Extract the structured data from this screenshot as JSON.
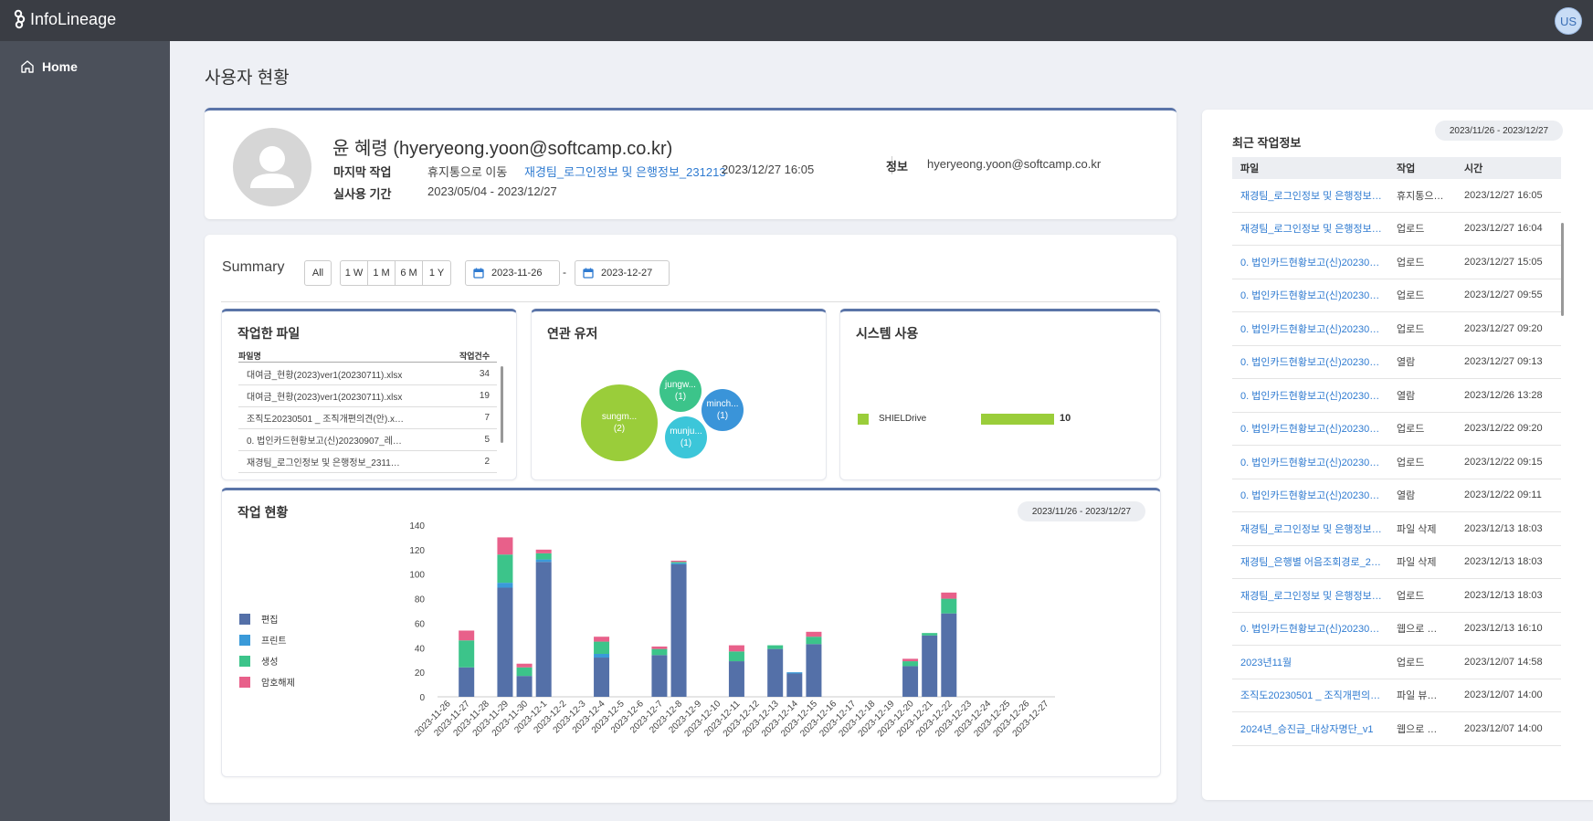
{
  "app": {
    "name": "InfoLineage",
    "user_initials": "US"
  },
  "sidebar": {
    "items": [
      {
        "label": "Home",
        "icon": "home-icon"
      }
    ]
  },
  "page": {
    "title": "사용자 현황"
  },
  "profile": {
    "name": "윤 혜령 (hyeryeong.yoon@softcamp.co.kr)",
    "last_work_label": "마지막 작업",
    "last_work_action": "휴지통으로 이동",
    "last_work_file": "재경팀_로그인정보 및 은행정보_231213",
    "last_work_time": "2023/12/27 16:05",
    "info_label": "정보",
    "info_value": "hyeryeong.yoon@softcamp.co.kr",
    "period_label": "실사용 기간",
    "period_value": "2023/05/04 - 2023/12/27"
  },
  "summary": {
    "title": "Summary",
    "all_label": "All",
    "ranges": [
      "1 W",
      "1 M",
      "6 M",
      "1 Y"
    ],
    "date_from": "2023-11-26",
    "date_to": "2023-12-27",
    "separator": "-"
  },
  "files_card": {
    "title": "작업한 파일",
    "col_name": "파일명",
    "col_count": "작업건수",
    "rows": [
      {
        "name": "대여금_현황(2023)ver1(20230711).xlsx",
        "count": "34"
      },
      {
        "name": "대여금_현황(2023)ver1(20230711).xlsx",
        "count": "19"
      },
      {
        "name": "조직도20230501 _ 조직개편의견(안).x…",
        "count": "7"
      },
      {
        "name": "0. 법인카드현황보고(신)20230907_레…",
        "count": "5"
      },
      {
        "name": "재경팀_로그인정보 및 은행정보_2311…",
        "count": "2"
      }
    ]
  },
  "users_card": {
    "title": "연관 유저",
    "bubbles": [
      {
        "name": "sungm...",
        "count": "(2)",
        "value": 2,
        "color": "#9acd3a"
      },
      {
        "name": "jungw...",
        "count": "(1)",
        "value": 1,
        "color": "#3cc48a"
      },
      {
        "name": "minch...",
        "count": "(1)",
        "value": 1,
        "color": "#3a94d9"
      },
      {
        "name": "munju...",
        "count": "(1)",
        "value": 1,
        "color": "#3cc6d9"
      }
    ]
  },
  "system_card": {
    "title": "시스템 사용",
    "items": [
      {
        "label": "SHIELDrive",
        "value": "10",
        "color": "#9acd3a"
      }
    ]
  },
  "work_card": {
    "title": "작업 현황",
    "range": "2023/11/26 - 2023/12/27"
  },
  "chart_data": {
    "type": "bar",
    "stacked": true,
    "categories": [
      "2023-11-26",
      "2023-11-27",
      "2023-11-28",
      "2023-11-29",
      "2023-11-30",
      "2023-12-1",
      "2023-12-2",
      "2023-12-3",
      "2023-12-4",
      "2023-12-5",
      "2023-12-6",
      "2023-12-7",
      "2023-12-8",
      "2023-12-9",
      "2023-12-10",
      "2023-12-11",
      "2023-12-12",
      "2023-12-13",
      "2023-12-14",
      "2023-12-15",
      "2023-12-16",
      "2023-12-17",
      "2023-12-18",
      "2023-12-19",
      "2023-12-20",
      "2023-12-21",
      "2023-12-22",
      "2023-12-23",
      "2023-12-24",
      "2023-12-25",
      "2023-12-26",
      "2023-12-27"
    ],
    "series": [
      {
        "name": "편집",
        "color": "#5470a8",
        "values": [
          0,
          24,
          0,
          89,
          17,
          110,
          0,
          0,
          32,
          0,
          0,
          34,
          108,
          0,
          0,
          29,
          0,
          39,
          19,
          43,
          0,
          0,
          0,
          0,
          25,
          50,
          68,
          0,
          0,
          0,
          0,
          0
        ]
      },
      {
        "name": "프린트",
        "color": "#3a9ad9",
        "values": [
          0,
          0,
          0,
          4,
          0,
          2,
          0,
          0,
          3,
          0,
          0,
          0,
          1,
          0,
          0,
          0,
          0,
          0,
          1,
          0,
          0,
          0,
          0,
          0,
          0,
          0,
          0,
          0,
          0,
          0,
          0,
          0
        ]
      },
      {
        "name": "생성",
        "color": "#3cc48a",
        "values": [
          0,
          22,
          0,
          23,
          7,
          5,
          0,
          0,
          10,
          0,
          0,
          5,
          1,
          0,
          0,
          8,
          0,
          3,
          0,
          6,
          0,
          0,
          0,
          0,
          4,
          2,
          12,
          0,
          0,
          0,
          0,
          0
        ]
      },
      {
        "name": "암호해제",
        "color": "#e8608a",
        "values": [
          0,
          8,
          0,
          14,
          3,
          3,
          0,
          0,
          4,
          0,
          0,
          2,
          1,
          0,
          0,
          5,
          0,
          0,
          0,
          4,
          0,
          0,
          0,
          0,
          2,
          0,
          5,
          0,
          0,
          0,
          0,
          0
        ]
      }
    ],
    "ylim": [
      0,
      140
    ],
    "yticks": [
      0,
      20,
      40,
      60,
      80,
      100,
      120,
      140
    ],
    "legend_position": "left",
    "grid": false
  },
  "recent": {
    "title": "최근 작업정보",
    "range": "2023/11/26 - 2023/12/27",
    "headers": [
      "파일",
      "작업",
      "시간"
    ],
    "rows": [
      {
        "file": "재경팀_로그인정보 및 은행정보…",
        "action": "휴지통으…",
        "time": "2023/12/27 16:05"
      },
      {
        "file": "재경팀_로그인정보 및 은행정보…",
        "action": "업로드",
        "time": "2023/12/27 16:04"
      },
      {
        "file": "0. 법인카드현황보고(신)20230…",
        "action": "업로드",
        "time": "2023/12/27 15:05"
      },
      {
        "file": "0. 법인카드현황보고(신)20230…",
        "action": "업로드",
        "time": "2023/12/27 09:55"
      },
      {
        "file": "0. 법인카드현황보고(신)20230…",
        "action": "업로드",
        "time": "2023/12/27 09:20"
      },
      {
        "file": "0. 법인카드현황보고(신)20230…",
        "action": "열람",
        "time": "2023/12/27 09:13"
      },
      {
        "file": "0. 법인카드현황보고(신)20230…",
        "action": "열람",
        "time": "2023/12/26 13:28"
      },
      {
        "file": "0. 법인카드현황보고(신)20230…",
        "action": "업로드",
        "time": "2023/12/22 09:20"
      },
      {
        "file": "0. 법인카드현황보고(신)20230…",
        "action": "업로드",
        "time": "2023/12/22 09:15"
      },
      {
        "file": "0. 법인카드현황보고(신)20230…",
        "action": "열람",
        "time": "2023/12/22 09:11"
      },
      {
        "file": "재경팀_로그인정보 및 은행정보…",
        "action": "파일 삭제",
        "time": "2023/12/13 18:03"
      },
      {
        "file": "재경팀_은행별 어음조회경로_2…",
        "action": "파일 삭제",
        "time": "2023/12/13 18:03"
      },
      {
        "file": "재경팀_로그인정보 및 은행정보…",
        "action": "업로드",
        "time": "2023/12/13 18:03"
      },
      {
        "file": "0. 법인카드현황보고(신)20230…",
        "action": "웹으로 …",
        "time": "2023/12/13 16:10"
      },
      {
        "file": "2023년11월",
        "action": "업로드",
        "time": "2023/12/07 14:58"
      },
      {
        "file": "조직도20230501 _ 조직개편의…",
        "action": "파일 뷰…",
        "time": "2023/12/07 14:00"
      },
      {
        "file": "2024년_승진급_대상자명단_v1",
        "action": "웹으로 …",
        "time": "2023/12/07 14:00"
      }
    ]
  }
}
